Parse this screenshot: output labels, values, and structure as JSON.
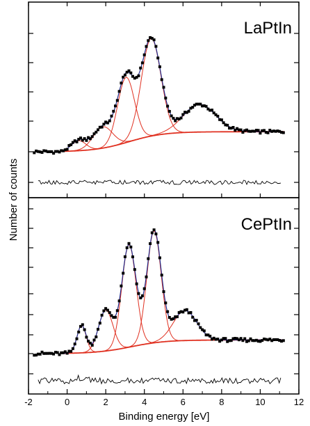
{
  "chart_data": [
    {
      "type": "line",
      "title": "LaPtIn",
      "baseline": 0.0,
      "residual_offset": -0.42,
      "components": [
        {
          "center": 0.6,
          "height": 0.08,
          "width": 0.55
        },
        {
          "center": 1.85,
          "height": 0.17,
          "width": 0.75
        },
        {
          "center": 3.05,
          "height": 0.52,
          "width": 0.65
        },
        {
          "center": 4.35,
          "height": 0.78,
          "width": 0.75
        },
        {
          "center": 6.85,
          "height": 0.22,
          "width": 1.25
        }
      ],
      "background": {
        "start": 0.0,
        "plateau": 0.16,
        "mid": 3.2,
        "scale": 0.9
      },
      "peaks_approx": [
        [
          4.2,
          0.93
        ],
        [
          3.35,
          0.8
        ],
        [
          6.9,
          0.38
        ]
      ]
    },
    {
      "type": "line",
      "title": "CePtIn",
      "baseline": 0.0,
      "residual_offset": -0.42,
      "components": [
        {
          "center": 0.75,
          "height": 0.2,
          "width": 0.35
        },
        {
          "center": 2.0,
          "height": 0.3,
          "width": 0.55
        },
        {
          "center": 3.2,
          "height": 0.75,
          "width": 0.55
        },
        {
          "center": 4.5,
          "height": 0.82,
          "width": 0.55
        },
        {
          "center": 6.1,
          "height": 0.22,
          "width": 0.9
        }
      ],
      "background": {
        "start": 0.0,
        "plateau": 0.1,
        "mid": 3.3,
        "scale": 0.9
      },
      "peaks_approx": [
        [
          3.3,
          1.02
        ],
        [
          4.5,
          1.07
        ],
        [
          0.8,
          0.28
        ]
      ]
    }
  ],
  "axes": {
    "xlabel": "Binding energy [eV]",
    "ylabel": "Number of counts",
    "xlim": [
      -2,
      12
    ],
    "xticks": [
      "-2",
      "0",
      "2",
      "4",
      "6",
      "8",
      "10",
      "12"
    ]
  },
  "colors": {
    "data_points": "#000000",
    "envelope": "#1f2a8a",
    "components": "#e03020",
    "residual": "#000000"
  }
}
